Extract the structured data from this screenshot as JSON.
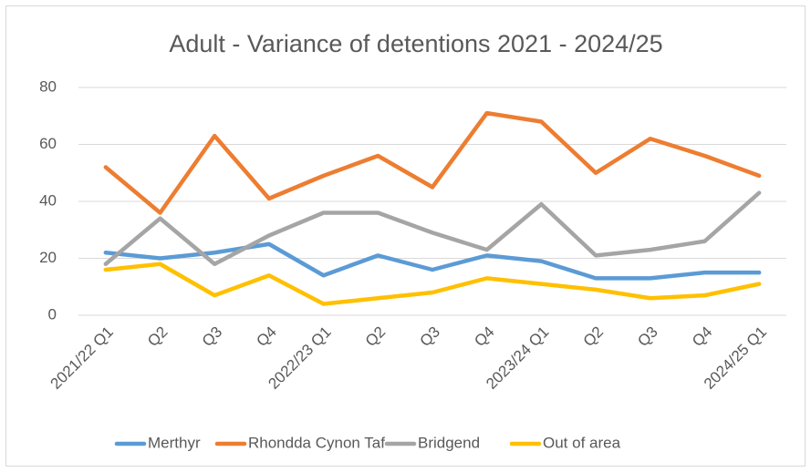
{
  "chart_data": {
    "type": "line",
    "title": "Adult - Variance of detentions 2021 - 2024/25",
    "categories": [
      "2021/22 Q1",
      "Q2",
      "Q3",
      "Q4",
      "2022/23 Q1",
      "Q2",
      "Q3",
      "Q4",
      "2023/24 Q1",
      "Q2",
      "Q3",
      "Q4",
      "2024/25 Q1"
    ],
    "series": [
      {
        "name": "Merthyr",
        "color": "#5b9bd5",
        "values": [
          22,
          20,
          22,
          25,
          14,
          21,
          16,
          21,
          19,
          13,
          13,
          15,
          15
        ]
      },
      {
        "name": "Rhondda Cynon Taf",
        "color": "#ed7d31",
        "values": [
          52,
          36,
          63,
          41,
          49,
          56,
          45,
          71,
          68,
          50,
          62,
          56,
          49
        ]
      },
      {
        "name": "Bridgend",
        "color": "#a5a5a5",
        "values": [
          18,
          34,
          18,
          28,
          36,
          36,
          29,
          23,
          39,
          21,
          23,
          26,
          43
        ]
      },
      {
        "name": "Out of area",
        "color": "#ffc000",
        "values": [
          16,
          18,
          7,
          14,
          4,
          6,
          8,
          13,
          11,
          9,
          6,
          7,
          11
        ]
      }
    ],
    "ylim": [
      0,
      80
    ],
    "yticks": [
      0,
      20,
      40,
      60,
      80
    ],
    "grid": true,
    "legend": "bottom"
  }
}
